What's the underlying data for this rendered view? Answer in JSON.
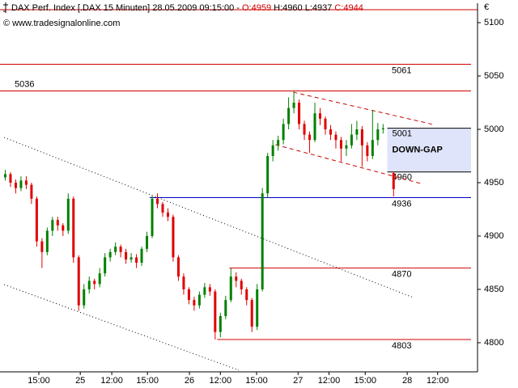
{
  "header": {
    "instrument": "DAX Perf. Index [.DAX  15 Minuten]",
    "time": "28.05.2009 09:15:00",
    "separator": "-",
    "open": "O:4959",
    "high": "H:4960",
    "low": "L:4937",
    "close": "C:4944",
    "source": "© www.tradesignalonline.com",
    "currency": "€"
  },
  "chart_data": {
    "type": "candlestick",
    "up_color": "#008000",
    "down_color": "#e00000",
    "xlim": [
      0,
      91
    ],
    "ylim": [
      4772.7,
      5118.2
    ],
    "yticks": [
      4800,
      4850,
      4900,
      4950,
      5000,
      5050,
      5100
    ],
    "xticks": [
      {
        "value": 7.4,
        "label": "15:00"
      },
      {
        "value": 15.3,
        "label": "25"
      },
      {
        "value": 21.3,
        "label": "12:00"
      },
      {
        "value": 28.1,
        "label": "15:00"
      },
      {
        "value": 36.1,
        "label": "26"
      },
      {
        "value": 42,
        "label": "12:00"
      },
      {
        "value": 48.9,
        "label": "15:00"
      },
      {
        "value": 56.8,
        "label": "27"
      },
      {
        "value": 62.7,
        "label": "12:00"
      },
      {
        "value": 69.6,
        "label": "15:00"
      },
      {
        "value": 77.6,
        "label": "28"
      },
      {
        "value": 83.4,
        "label": "12:00"
      }
    ],
    "x": [
      1,
      2,
      3,
      4,
      5,
      6,
      7,
      8,
      9,
      10,
      11,
      12,
      13,
      14,
      15,
      16,
      17,
      18,
      19,
      20,
      21,
      22,
      23,
      24,
      25,
      26,
      27,
      28,
      29,
      30,
      31,
      32,
      33,
      34,
      35,
      36,
      37,
      38,
      39,
      40,
      41,
      42,
      43,
      44,
      45,
      46,
      47,
      48,
      49,
      50,
      51,
      52,
      53,
      54,
      55,
      56,
      57,
      58,
      59,
      60,
      61,
      62,
      63,
      64,
      65,
      66,
      67,
      68,
      69,
      70,
      71,
      72,
      73,
      75
    ],
    "open": [
      4955,
      4958,
      4950,
      4945,
      4952,
      4948,
      4935,
      4895,
      4885,
      4905,
      4915,
      4910,
      4905,
      4935,
      4880,
      4835,
      4850,
      4858,
      4855,
      4865,
      4880,
      4885,
      4890,
      4885,
      4878,
      4880,
      4875,
      4888,
      4900,
      4935,
      4930,
      4922,
      4918,
      4880,
      4862,
      4850,
      4840,
      4835,
      4845,
      4852,
      4848,
      4810,
      4825,
      4840,
      4862,
      4858,
      4850,
      4840,
      4815,
      4850,
      4940,
      4975,
      4985,
      4990,
      5005,
      5020,
      5025,
      5005,
      4995,
      4990,
      5015,
      5010,
      5000,
      4995,
      4990,
      4982,
      4985,
      4995,
      5000,
      4985,
      4975,
      4990,
      5000,
      4959
    ],
    "high": [
      4962,
      4960,
      4953,
      4956,
      4956,
      4950,
      4937,
      4898,
      4908,
      4918,
      4918,
      4912,
      4940,
      4937,
      4882,
      4855,
      4862,
      4860,
      4870,
      4884,
      4888,
      4894,
      4892,
      4888,
      4884,
      4883,
      4890,
      4904,
      4938,
      4940,
      4932,
      4926,
      4920,
      4882,
      4865,
      4852,
      4843,
      4848,
      4856,
      4855,
      4850,
      4828,
      4844,
      4870,
      4866,
      4860,
      4852,
      4842,
      4855,
      4945,
      4978,
      4990,
      4994,
      5010,
      5030,
      5036,
      5028,
      5008,
      4998,
      5025,
      5020,
      5012,
      5004,
      4998,
      4993,
      4990,
      5005,
      5008,
      5003,
      4988,
      5018,
      5006,
      5005,
      4960
    ],
    "low": [
      4952,
      4946,
      4940,
      4942,
      4944,
      4930,
      4890,
      4870,
      4882,
      4900,
      4905,
      4900,
      4902,
      4875,
      4830,
      4832,
      4846,
      4850,
      4852,
      4862,
      4876,
      4882,
      4880,
      4874,
      4875,
      4870,
      4872,
      4885,
      4898,
      4926,
      4918,
      4914,
      4876,
      4858,
      4845,
      4836,
      4830,
      4832,
      4842,
      4844,
      4803,
      4805,
      4822,
      4838,
      4852,
      4845,
      4835,
      4810,
      4812,
      4848,
      4936,
      4970,
      4980,
      4986,
      5000,
      5015,
      5000,
      4990,
      4978,
      4988,
      5004,
      4995,
      4990,
      4982,
      4970,
      4975,
      4982,
      4990,
      4965,
      4970,
      4972,
      4985,
      4996,
      4937
    ],
    "close": [
      4958,
      4950,
      4945,
      4952,
      4948,
      4935,
      4895,
      4885,
      4905,
      4915,
      4910,
      4905,
      4935,
      4880,
      4835,
      4850,
      4858,
      4855,
      4865,
      4880,
      4885,
      4890,
      4885,
      4878,
      4880,
      4875,
      4888,
      4900,
      4935,
      4930,
      4922,
      4918,
      4880,
      4862,
      4850,
      4840,
      4835,
      4845,
      4852,
      4848,
      4810,
      4825,
      4840,
      4862,
      4858,
      4850,
      4840,
      4815,
      4850,
      4940,
      4975,
      4985,
      4990,
      5005,
      5020,
      5025,
      5005,
      4995,
      4990,
      5015,
      5010,
      5000,
      4995,
      4990,
      4982,
      4985,
      4995,
      5000,
      4985,
      4975,
      4990,
      5000,
      5001,
      4944
    ],
    "levels": [
      {
        "value": 5061,
        "color": "#d00000",
        "x_start": 0,
        "label_side": "right"
      },
      {
        "value": 5036,
        "color": "#d00000",
        "x_start": 0,
        "label_side": "left"
      },
      {
        "value": 4936,
        "color": "#0000c0",
        "x_start": 28.5,
        "label_side": "right"
      },
      {
        "value": 4870,
        "color": "#d00000",
        "x_start": 43.7,
        "label_side": "right"
      },
      {
        "value": 4803,
        "color": "#d00000",
        "x_start": 41.4,
        "label_side": "right"
      }
    ],
    "zone": {
      "label": "DOWN-GAP",
      "top": 5001,
      "bottom": 4960,
      "x_start": 73.8,
      "color": "#e0e4fa"
    },
    "trendlines": [
      {
        "x": [
          55.9,
          82.6
        ],
        "y": [
          5034.8,
          5004.5
        ],
        "color": "#d00000",
        "style": "dashed"
      },
      {
        "x": [
          52.5,
          80.2
        ],
        "y": [
          4985.6,
          4949.2
        ],
        "color": "#d00000",
        "style": "dashed"
      },
      {
        "x": [
          0.8,
          78.7
        ],
        "y": [
          4992.4,
          4842.4
        ],
        "color": "#000000",
        "style": "dotted"
      },
      {
        "x": [
          0.8,
          45.5
        ],
        "y": [
          4854.5,
          4774.2
        ],
        "color": "#000000",
        "style": "dotted"
      }
    ]
  }
}
